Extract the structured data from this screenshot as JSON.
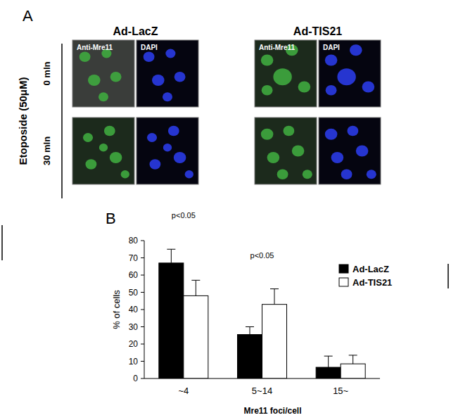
{
  "panel_a": {
    "label": "A",
    "treatment": "Etoposide (50μM)",
    "rows": [
      "0 mln",
      "30 mln"
    ],
    "groups": [
      {
        "name": "Ad-LacZ",
        "channels": [
          "Anti-Mre11",
          "DAPI"
        ]
      },
      {
        "name": "Ad-TIS21",
        "channels": [
          "Anti-Mre11",
          "DAPI"
        ]
      }
    ]
  },
  "chart_data": {
    "type": "bar",
    "panel_label": "B",
    "x_label": "Mre11 foci/cell",
    "y_label": "% of cells",
    "categories": [
      "~4",
      "5~14",
      "15~"
    ],
    "series": [
      {
        "name": "Ad-LacZ",
        "color": "#000000",
        "values": [
          67,
          25.5,
          6.5
        ],
        "errors": [
          8,
          4.5,
          6.5
        ]
      },
      {
        "name": "Ad-TIS21",
        "color": "#ffffff",
        "values": [
          48,
          43,
          8.5
        ],
        "errors": [
          9,
          9,
          5
        ]
      }
    ],
    "annotations": [
      {
        "text": "p<0.05",
        "category": 0
      },
      {
        "text": "p<0.05",
        "category": 1
      }
    ],
    "ylim": [
      0,
      80
    ],
    "yticks": [
      0,
      10,
      20,
      30,
      40,
      50,
      60,
      70,
      80
    ],
    "legend": "top-right"
  }
}
